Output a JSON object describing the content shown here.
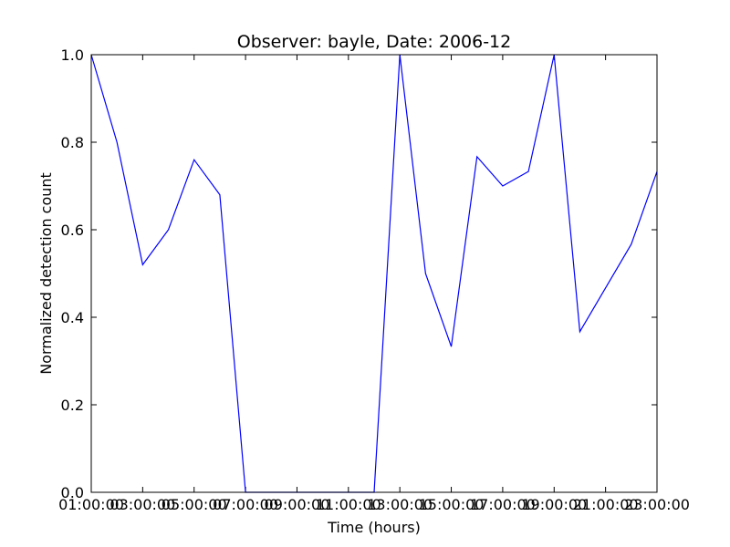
{
  "chart_data": {
    "type": "line",
    "title": "Observer: bayle, Date: 2006-12",
    "xlabel": "Time (hours)",
    "ylabel": "Normalized detection count",
    "x_tick_labels": [
      "01:00:00",
      "03:00:00",
      "05:00:00",
      "07:00:00",
      "09:00:00",
      "11:00:00",
      "13:00:00",
      "15:00:00",
      "17:00:00",
      "19:00:00",
      "21:00:00",
      "23:00:00"
    ],
    "x_tick_labels_extra": [
      "03",
      "05",
      "07",
      "09",
      "11",
      "13",
      "15",
      "17",
      "19",
      "21"
    ],
    "y_tick_labels": [
      "0.0",
      "0.2",
      "0.4",
      "0.6",
      "0.8",
      "1.0"
    ],
    "xlim": [
      1,
      23
    ],
    "ylim": [
      0,
      1
    ],
    "grid": false,
    "legend": "none",
    "series": [
      {
        "color": "#0000ff",
        "x": [
          1,
          2,
          3,
          4,
          5,
          6,
          7,
          8,
          9,
          10,
          11,
          12,
          13,
          14,
          15,
          16,
          17,
          18,
          19,
          20,
          21,
          22,
          23
        ],
        "y": [
          1.0,
          0.8,
          0.52,
          0.6,
          0.76,
          0.68,
          0.0,
          0.0,
          0.0,
          0.0,
          0.0,
          0.0,
          1.0,
          0.5,
          0.333,
          0.767,
          0.7,
          0.733,
          1.0,
          0.367,
          0.467,
          0.567,
          0.733
        ]
      }
    ]
  }
}
